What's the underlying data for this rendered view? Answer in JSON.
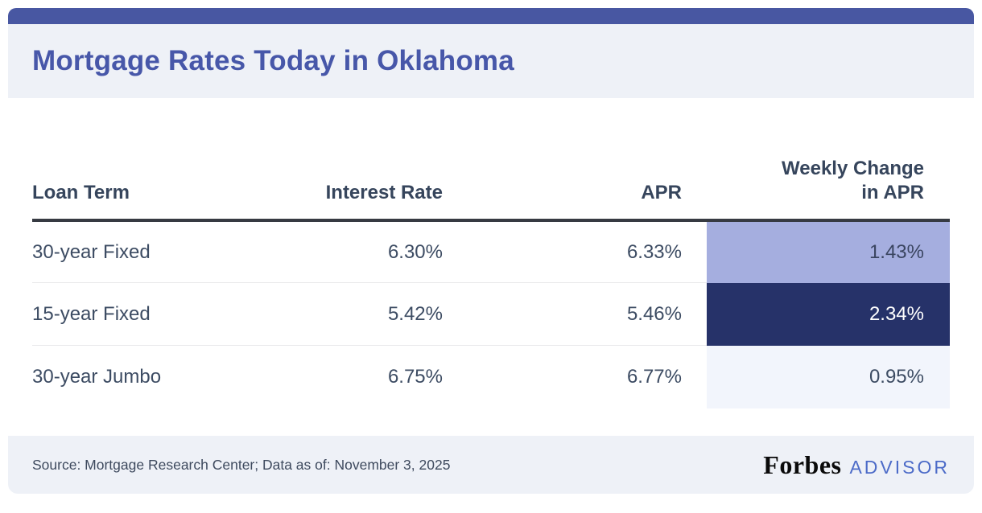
{
  "title": "Mortgage Rates Today in Oklahoma",
  "table": {
    "headers": {
      "loan_term": "Loan Term",
      "interest_rate": "Interest Rate",
      "apr": "APR",
      "weekly_change": "Weekly Change in APR"
    },
    "rows": [
      {
        "loan_term": "30-year Fixed",
        "interest_rate": "6.30%",
        "apr": "6.33%",
        "weekly_change": "1.43%"
      },
      {
        "loan_term": "15-year Fixed",
        "interest_rate": "5.42%",
        "apr": "5.46%",
        "weekly_change": "2.34%"
      },
      {
        "loan_term": "30-year Jumbo",
        "interest_rate": "6.75%",
        "apr": "6.77%",
        "weekly_change": "0.95%"
      }
    ]
  },
  "footer": {
    "source_text": "Source: Mortgage Research Center; Data as of: November 3, 2025",
    "brand_name": "Forbes",
    "brand_suffix": "ADVISOR"
  },
  "colors": {
    "top_bar": "#4857A2",
    "band_background": "#EEF1F7",
    "title_text": "#4757A9",
    "table_text": "#3D4C63",
    "header_border": "#363A42",
    "weekly_change_row1_bg": "#A5AEDF",
    "weekly_change_row2_bg": "#263269",
    "weekly_change_row2_text": "#FFFFFF",
    "weekly_change_row3_bg": "#F2F5FC",
    "advisor_text": "#4C6BC8",
    "forbes_text": "#0A0A0A"
  },
  "chart_data": {
    "type": "table",
    "title": "Mortgage Rates Today in Oklahoma",
    "columns": [
      "Loan Term",
      "Interest Rate",
      "APR",
      "Weekly Change in APR"
    ],
    "rows": [
      [
        "30-year Fixed",
        "6.30%",
        "6.33%",
        "1.43%"
      ],
      [
        "15-year Fixed",
        "5.42%",
        "5.46%",
        "2.34%"
      ],
      [
        "30-year Jumbo",
        "6.75%",
        "6.77%",
        "0.95%"
      ]
    ],
    "highlighted_column": "Weekly Change in APR",
    "source": "Source: Mortgage Research Center; Data as of: November 3, 2025"
  }
}
